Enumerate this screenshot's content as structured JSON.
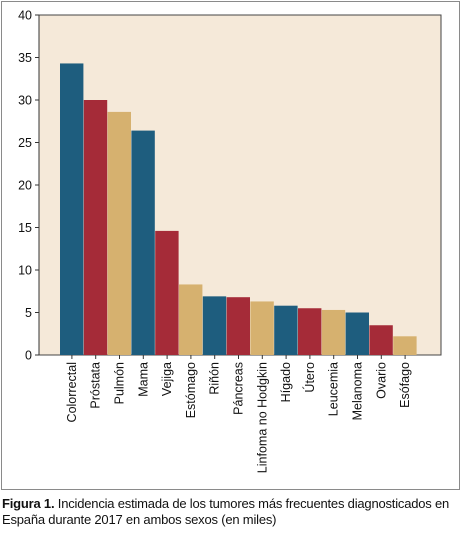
{
  "chart_data": {
    "type": "bar",
    "categories": [
      "Colorrectal",
      "Próstata",
      "Pulmón",
      "Mama",
      "Vejiga",
      "Estómago",
      "Riñón",
      "Páncreas",
      "Linfoma no Hodgkin",
      "Hígado",
      "Útero",
      "Leucemia",
      "Melanoma",
      "Ovario",
      "Esófago"
    ],
    "values": [
      34.3,
      30.0,
      28.6,
      26.4,
      14.6,
      8.3,
      6.9,
      6.8,
      6.3,
      5.8,
      5.5,
      5.3,
      5.0,
      3.5,
      2.2
    ],
    "colors": [
      "#1e5d7e",
      "#a52b38",
      "#d6b16f",
      "#1e5d7e",
      "#a52b38",
      "#d6b16f",
      "#1e5d7e",
      "#a52b38",
      "#d6b16f",
      "#1e5d7e",
      "#a52b38",
      "#d6b16f",
      "#1e5d7e",
      "#a52b38",
      "#d6b16f"
    ],
    "ylim": [
      0,
      40
    ],
    "yticks": [
      0,
      5,
      10,
      15,
      20,
      25,
      30,
      35,
      40
    ],
    "xlabel": "",
    "ylabel": "",
    "grid": false,
    "plot_background": "#f5e9d9"
  },
  "caption": {
    "label": "Figura 1.",
    "text": " Incidencia estimada de los tumores más frecuentes diagnosticados en España durante 2017 en ambos sexos (en miles)"
  }
}
